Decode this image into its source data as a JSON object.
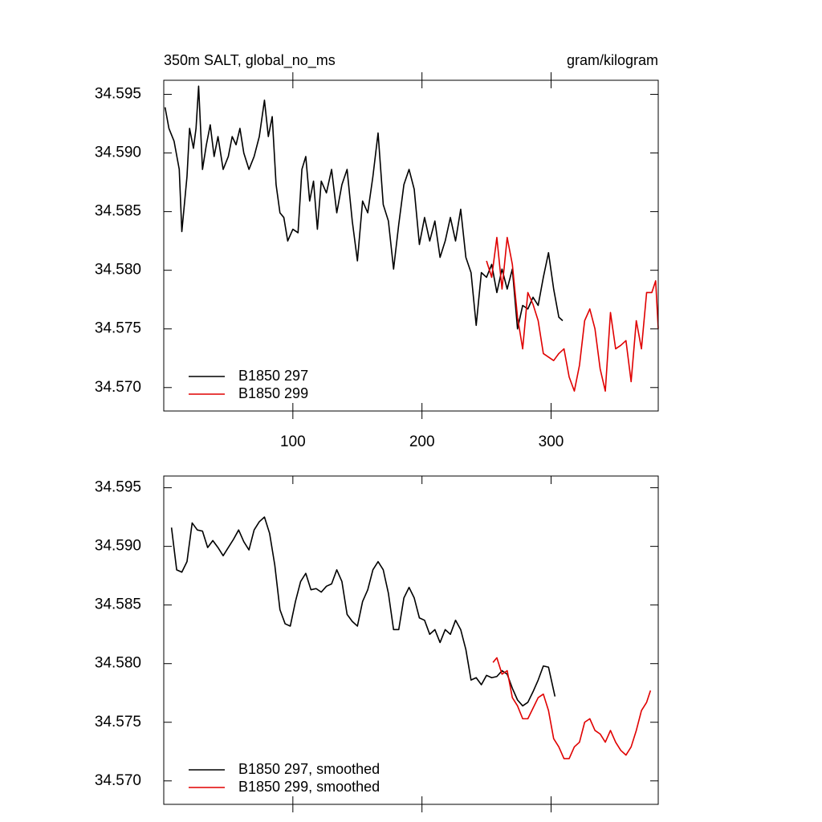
{
  "chart_data": [
    {
      "type": "line",
      "title": "350m SALT, global_no_ms",
      "units": "gram/kilogram",
      "xlim": [
        0,
        383
      ],
      "xticks": [
        100,
        200,
        300
      ],
      "xtick_labels": true,
      "ylim": [
        34.568,
        34.5962
      ],
      "yticks": [
        34.595,
        {
          "value": 34.59,
          "label": "34.590"
        },
        34.585,
        {
          "value": 34.58,
          "label": "34.580"
        },
        34.575,
        {
          "value": 34.57,
          "label": "34.570"
        }
      ],
      "legend": "lower left",
      "series": [
        {
          "name": "B1850 297",
          "color": "#000000",
          "x": [
            1,
            4,
            8,
            12,
            14,
            18,
            20,
            23,
            25,
            27,
            30,
            33,
            36,
            39,
            42,
            46,
            50,
            53,
            56,
            59,
            62,
            66,
            70,
            74,
            78,
            81,
            84,
            87,
            90,
            93,
            96,
            100,
            104,
            107,
            110,
            113,
            116,
            119,
            122,
            126,
            130,
            134,
            138,
            142,
            146,
            150,
            154,
            158,
            162,
            166,
            170,
            174,
            178,
            182,
            186,
            190,
            194,
            198,
            202,
            206,
            210,
            214,
            218,
            222,
            226,
            230,
            234,
            238,
            242,
            246,
            250,
            254,
            258,
            262,
            266,
            270,
            274,
            278,
            282,
            286,
            290,
            294,
            298,
            302,
            306,
            309
          ],
          "values": [
            34.5939,
            34.5921,
            34.591,
            34.5886,
            34.5833,
            34.588,
            34.5921,
            34.5904,
            34.5921,
            34.5957,
            34.5886,
            34.5907,
            34.5924,
            34.5897,
            34.5914,
            34.5886,
            34.5897,
            34.5914,
            34.5907,
            34.5921,
            34.59,
            34.5886,
            34.5897,
            34.5914,
            34.5945,
            34.5914,
            34.5931,
            34.5873,
            34.5849,
            34.5845,
            34.5825,
            34.5835,
            34.5832,
            34.5886,
            34.5897,
            34.5859,
            34.5876,
            34.5835,
            34.5876,
            34.5866,
            34.5886,
            34.5849,
            34.5873,
            34.5886,
            34.5842,
            34.5808,
            34.5859,
            34.5849,
            34.588,
            34.5917,
            34.5856,
            34.5842,
            34.5801,
            34.5839,
            34.5873,
            34.5886,
            34.5869,
            34.5822,
            34.5845,
            34.5825,
            34.5842,
            34.5811,
            34.5825,
            34.5845,
            34.5825,
            34.5852,
            34.5811,
            34.5798,
            34.5753,
            34.5798,
            34.5794,
            34.5805,
            34.5781,
            34.5801,
            34.5784,
            34.5801,
            34.575,
            34.577,
            34.5767,
            34.5777,
            34.577,
            34.5794,
            34.5815,
            34.5784,
            34.576,
            34.5757
          ]
        },
        {
          "name": "B1850 299",
          "color": "#e00000",
          "x": [
            250,
            254,
            258,
            262,
            266,
            270,
            274,
            278,
            282,
            286,
            290,
            294,
            298,
            302,
            306,
            310,
            314,
            318,
            322,
            326,
            330,
            334,
            338,
            342,
            346,
            350,
            354,
            358,
            362,
            366,
            370,
            374,
            378,
            381,
            383
          ],
          "values": [
            34.5808,
            34.5794,
            34.5828,
            34.5784,
            34.5828,
            34.5805,
            34.576,
            34.5733,
            34.5781,
            34.5771,
            34.5757,
            34.5729,
            34.5726,
            34.5723,
            34.5729,
            34.5733,
            34.5709,
            34.5697,
            34.5719,
            34.5757,
            34.5767,
            34.575,
            34.5716,
            34.5697,
            34.5764,
            34.5733,
            34.5736,
            34.574,
            34.5705,
            34.5757,
            34.5733,
            34.5781,
            34.5781,
            34.5791,
            34.575
          ]
        }
      ]
    },
    {
      "type": "line",
      "xlim": [
        0,
        383
      ],
      "xticks": [
        100,
        200,
        300
      ],
      "xtick_labels": false,
      "ylim": [
        34.568,
        34.596
      ],
      "yticks": [
        34.595,
        {
          "value": 34.59,
          "label": "34.590"
        },
        34.585,
        {
          "value": 34.58,
          "label": "34.580"
        },
        34.575,
        {
          "value": 34.57,
          "label": "34.570"
        }
      ],
      "legend": "lower left",
      "series": [
        {
          "name": "B1850 297, smoothed",
          "color": "#000000",
          "x": [
            6,
            10,
            14,
            18,
            22,
            26,
            30,
            34,
            38,
            42,
            46,
            50,
            54,
            58,
            62,
            66,
            70,
            74,
            78,
            82,
            86,
            90,
            94,
            98,
            102,
            106,
            110,
            114,
            118,
            122,
            126,
            130,
            134,
            138,
            142,
            146,
            150,
            154,
            158,
            162,
            166,
            170,
            174,
            178,
            182,
            186,
            190,
            194,
            198,
            202,
            206,
            210,
            214,
            218,
            222,
            226,
            230,
            234,
            238,
            242,
            246,
            250,
            254,
            258,
            262,
            266,
            270,
            274,
            278,
            282,
            286,
            290,
            294,
            298,
            302,
            303
          ],
          "values": [
            34.5916,
            34.588,
            34.5878,
            34.5887,
            34.592,
            34.5914,
            34.5913,
            34.5899,
            34.5905,
            34.5899,
            34.5892,
            34.5899,
            34.5906,
            34.5914,
            34.5904,
            34.5897,
            34.5914,
            34.5921,
            34.5925,
            34.5911,
            34.5884,
            34.5846,
            34.5834,
            34.5832,
            34.5853,
            34.587,
            34.5877,
            34.5863,
            34.5864,
            34.5861,
            34.5866,
            34.5868,
            34.588,
            34.587,
            34.5842,
            34.5836,
            34.5832,
            34.5853,
            34.5863,
            34.588,
            34.5887,
            34.588,
            34.586,
            34.5829,
            34.5829,
            34.5856,
            34.5865,
            34.5856,
            34.5839,
            34.5837,
            34.5825,
            34.5829,
            34.5818,
            34.5829,
            34.5825,
            34.5837,
            34.5829,
            34.5812,
            34.5786,
            34.5788,
            34.5782,
            34.579,
            34.5788,
            34.5789,
            34.5794,
            34.5791,
            34.5779,
            34.5769,
            34.5764,
            34.5767,
            34.5776,
            34.5786,
            34.5798,
            34.5797,
            34.5777,
            34.5772
          ]
        },
        {
          "name": "B1850 299, smoothed",
          "color": "#e00000",
          "x": [
            255,
            258,
            262,
            266,
            270,
            274,
            278,
            282,
            286,
            290,
            294,
            298,
            302,
            306,
            310,
            314,
            318,
            322,
            326,
            330,
            334,
            338,
            342,
            346,
            350,
            354,
            358,
            362,
            366,
            370,
            374,
            377
          ],
          "values": [
            34.5801,
            34.5805,
            34.5791,
            34.5794,
            34.5771,
            34.5764,
            34.5753,
            34.5753,
            34.5762,
            34.5771,
            34.5774,
            34.576,
            34.5736,
            34.5729,
            34.5719,
            34.5719,
            34.5729,
            34.5733,
            34.575,
            34.5753,
            34.5743,
            34.574,
            34.5733,
            34.5743,
            34.5733,
            34.5726,
            34.5722,
            34.5729,
            34.5743,
            34.576,
            34.5767,
            34.5777
          ]
        }
      ]
    }
  ]
}
